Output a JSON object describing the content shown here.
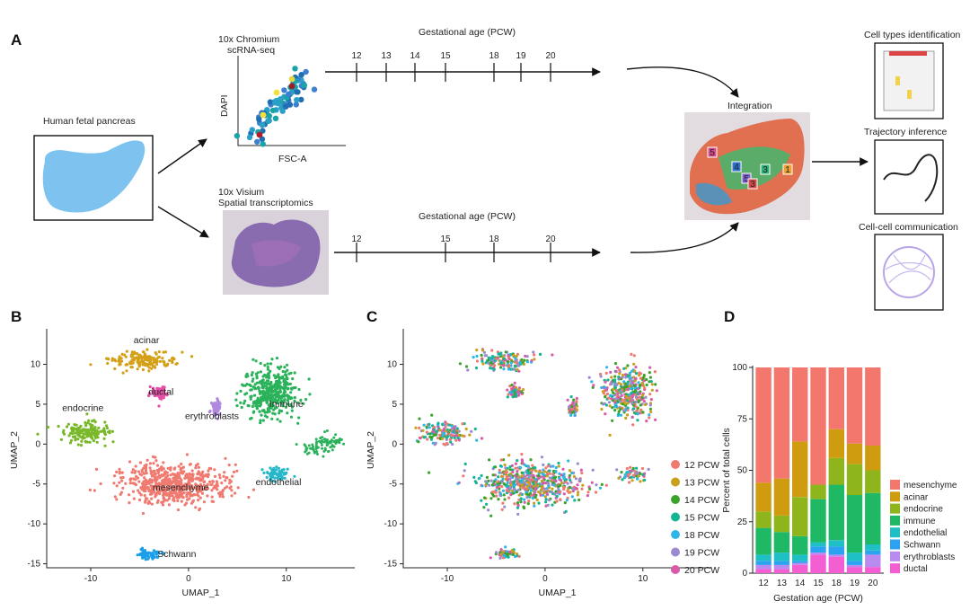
{
  "panel_a": {
    "label": "A",
    "source_label": "Human fetal pancreas",
    "scrna": {
      "title_line1": "10x Chromium",
      "title_line2": "scRNA-seq",
      "ylabel": "DAPI",
      "xlabel": "FSC-A"
    },
    "visium": {
      "title_line1": "10x Visium",
      "title_line2": "Spatial transcriptomics"
    },
    "timeline_top": {
      "title": "Gestational age (PCW)",
      "ticks": [
        "12",
        "13",
        "14",
        "15",
        "18",
        "19",
        "20"
      ]
    },
    "timeline_bottom": {
      "title": "Gestational age (PCW)",
      "ticks": [
        "12",
        "15",
        "18",
        "20"
      ]
    },
    "integration_label": "Integration",
    "integration_markers": [
      "5",
      "4",
      "5",
      "3",
      "3",
      "1"
    ],
    "outputs": [
      "Cell types identification",
      "Trajectory inference",
      "Cell-cell communication"
    ]
  },
  "chart_data": [
    {
      "panel": "B",
      "type": "scatter",
      "xlabel": "UMAP_1",
      "ylabel": "UMAP_2",
      "xlim": [
        -14.5,
        17
      ],
      "ylim": [
        -15.5,
        14
      ],
      "xticks": [
        -10,
        0,
        10
      ],
      "yticks": [
        10,
        5,
        0,
        -5,
        -10,
        -15
      ],
      "clusters": [
        {
          "name": "acinar",
          "label": "acinar",
          "color": "#d4a017",
          "center": [
            -4.5,
            10.5
          ],
          "spread": [
            3.5,
            1.3
          ]
        },
        {
          "name": "ductal",
          "label": "ductal",
          "color": "#e64da6",
          "center": [
            -3.0,
            6.5
          ],
          "spread": [
            0.9,
            0.9
          ]
        },
        {
          "name": "endocrine",
          "label": "endocrine",
          "color": "#79b829",
          "center": [
            -10.5,
            1.5
          ],
          "spread": [
            2.7,
            1.6
          ]
        },
        {
          "name": "erythroblasts",
          "label": "erythroblasts",
          "color": "#b088e0",
          "center": [
            2.8,
            4.5
          ],
          "spread": [
            0.6,
            1.2
          ]
        },
        {
          "name": "immune",
          "label": "Immune",
          "color": "#2ab25a",
          "center": [
            8.5,
            6.5
          ],
          "spread": [
            3.0,
            3.5
          ]
        },
        {
          "name": "endothelial",
          "label": "endothelial",
          "color": "#26b7c9",
          "center": [
            9.0,
            -3.8
          ],
          "spread": [
            1.5,
            1.0
          ]
        },
        {
          "name": "mesenchyme",
          "label": "mesenchyme",
          "color": "#f07a70",
          "center": [
            -1.5,
            -5.0
          ],
          "spread": [
            6.0,
            2.8
          ]
        },
        {
          "name": "schwann",
          "label": "Schwann",
          "color": "#1a9ee8",
          "center": [
            -4.0,
            -13.8
          ],
          "spread": [
            1.2,
            0.6
          ]
        }
      ]
    },
    {
      "panel": "C",
      "type": "scatter",
      "xlabel": "UMAP_1",
      "ylabel": "UMAP_2",
      "xlim": [
        -14.5,
        17
      ],
      "ylim": [
        -15.5,
        14
      ],
      "xticks": [
        -10,
        0,
        10
      ],
      "yticks": [
        10,
        5,
        0,
        -5,
        -10,
        -15
      ],
      "legend": [
        {
          "label": "12 PCW",
          "color": "#f07a70"
        },
        {
          "label": "13 PCW",
          "color": "#c9a01a"
        },
        {
          "label": "14 PCW",
          "color": "#3aa32a"
        },
        {
          "label": "15 PCW",
          "color": "#13b592"
        },
        {
          "label": "18 PCW",
          "color": "#2fb6e8"
        },
        {
          "label": "19 PCW",
          "color": "#9b8ad0"
        },
        {
          "label": "20 PCW",
          "color": "#d85aa8"
        }
      ]
    },
    {
      "panel": "D",
      "type": "bar",
      "stacked": true,
      "title": "",
      "xlabel": "Gestation age (PCW)",
      "ylabel": "Percent of total cells",
      "ylim": [
        0,
        100
      ],
      "yticks": [
        0,
        25,
        50,
        75,
        100
      ],
      "categories": [
        "12",
        "13",
        "14",
        "15",
        "18",
        "19",
        "20"
      ],
      "series": [
        {
          "name": "ductal",
          "color": "#f35ed2",
          "values": [
            2,
            2,
            4,
            9,
            8,
            3,
            3
          ]
        },
        {
          "name": "erythroblasts",
          "color": "#b98bf0",
          "values": [
            2,
            2,
            1,
            1,
            1,
            1,
            6
          ]
        },
        {
          "name": "Schwann",
          "color": "#2ba3f0",
          "values": [
            2,
            2,
            1,
            3,
            4,
            2,
            2
          ]
        },
        {
          "name": "endothelial",
          "color": "#1fbfc6",
          "values": [
            3,
            4,
            3,
            2,
            3,
            4,
            3
          ]
        },
        {
          "name": "immune",
          "color": "#1fb865",
          "values": [
            13,
            10,
            9,
            21,
            27,
            28,
            25
          ]
        },
        {
          "name": "endocrine",
          "color": "#8fb51c",
          "values": [
            8,
            8,
            19,
            7,
            13,
            15,
            11
          ]
        },
        {
          "name": "acinar",
          "color": "#cf9c10",
          "values": [
            14,
            18,
            27,
            0,
            14,
            10,
            12
          ]
        },
        {
          "name": "mesenchyme",
          "color": "#f4776e",
          "values": [
            56,
            54,
            36,
            57,
            30,
            37,
            38
          ]
        }
      ],
      "legend_order": [
        "mesenchyme",
        "acinar",
        "endocrine",
        "immune",
        "endothelial",
        "Schwann",
        "erythroblasts",
        "ductal"
      ]
    }
  ]
}
